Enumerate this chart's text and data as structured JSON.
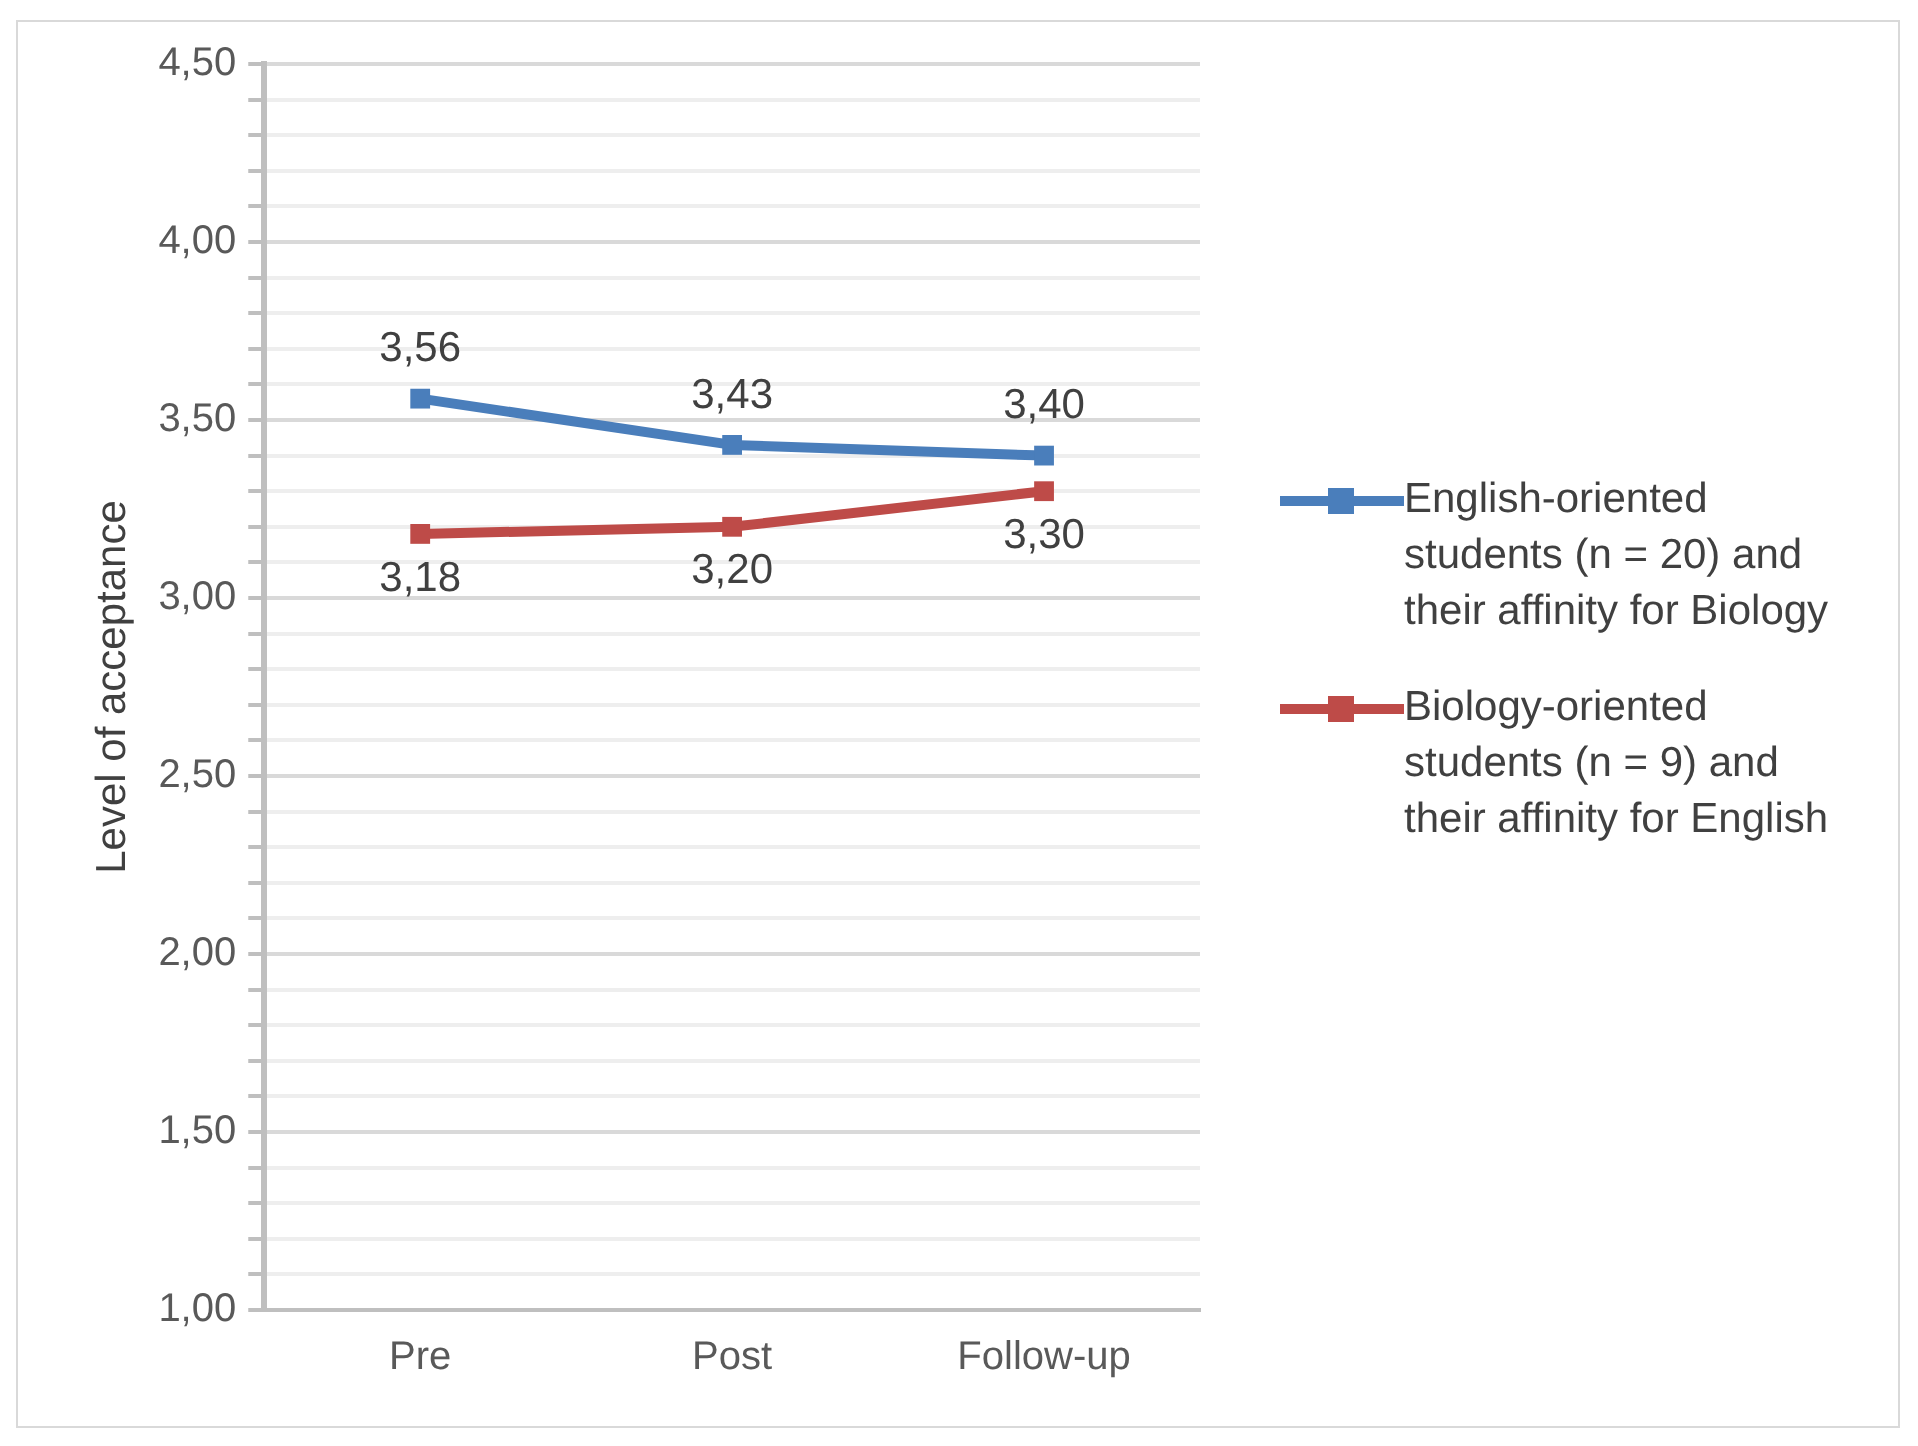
{
  "chart_data": {
    "type": "line",
    "categories": [
      "Pre",
      "Post",
      "Follow-up"
    ],
    "ylabel": "Level of acceptance",
    "series": [
      {
        "name": "English-oriented students (n = 20) and their affinity for Biology",
        "color": "#4a7ebb",
        "values": [
          3.56,
          3.43,
          3.4
        ],
        "value_labels": [
          "3,56",
          "3,43",
          "3,40"
        ]
      },
      {
        "name": "Biology-oriented students (n = 9) and their affinity for English",
        "color": "#be4b48",
        "values": [
          3.18,
          3.2,
          3.3
        ],
        "value_labels": [
          "3,18",
          "3,20",
          "3,30"
        ]
      }
    ],
    "ylim": [
      1,
      4.5
    ],
    "yticks": [
      {
        "value": 1,
        "label": "1,00"
      },
      {
        "value": 1.1,
        "label": null
      },
      {
        "value": 1.2,
        "label": null
      },
      {
        "value": 1.3,
        "label": null
      },
      {
        "value": 1.4,
        "label": null
      },
      {
        "value": 1.5,
        "label": "1,50"
      },
      {
        "value": 1.6,
        "label": null
      },
      {
        "value": 1.7,
        "label": null
      },
      {
        "value": 1.8,
        "label": null
      },
      {
        "value": 1.9,
        "label": null
      },
      {
        "value": 2,
        "label": "2,00"
      },
      {
        "value": 2.1,
        "label": null
      },
      {
        "value": 2.2,
        "label": null
      },
      {
        "value": 2.3,
        "label": null
      },
      {
        "value": 2.4,
        "label": null
      },
      {
        "value": 2.5,
        "label": "2,50"
      },
      {
        "value": 2.6,
        "label": null
      },
      {
        "value": 2.7,
        "label": null
      },
      {
        "value": 2.8,
        "label": null
      },
      {
        "value": 2.9,
        "label": null
      },
      {
        "value": 3,
        "label": "3,00"
      },
      {
        "value": 3.1,
        "label": null
      },
      {
        "value": 3.2,
        "label": null
      },
      {
        "value": 3.3,
        "label": null
      },
      {
        "value": 3.4,
        "label": null
      },
      {
        "value": 3.5,
        "label": "3,50"
      },
      {
        "value": 3.6,
        "label": null
      },
      {
        "value": 3.7,
        "label": null
      },
      {
        "value": 3.8,
        "label": null
      },
      {
        "value": 3.9,
        "label": null
      },
      {
        "value": 4,
        "label": "4,00"
      },
      {
        "value": 4.1,
        "label": null
      },
      {
        "value": 4.2,
        "label": null
      },
      {
        "value": 4.3,
        "label": null
      },
      {
        "value": 4.4,
        "label": null
      },
      {
        "value": 4.5,
        "label": "4,50"
      }
    ],
    "grid": "y",
    "legend": "right",
    "marker": "square",
    "line_style": "solid"
  }
}
